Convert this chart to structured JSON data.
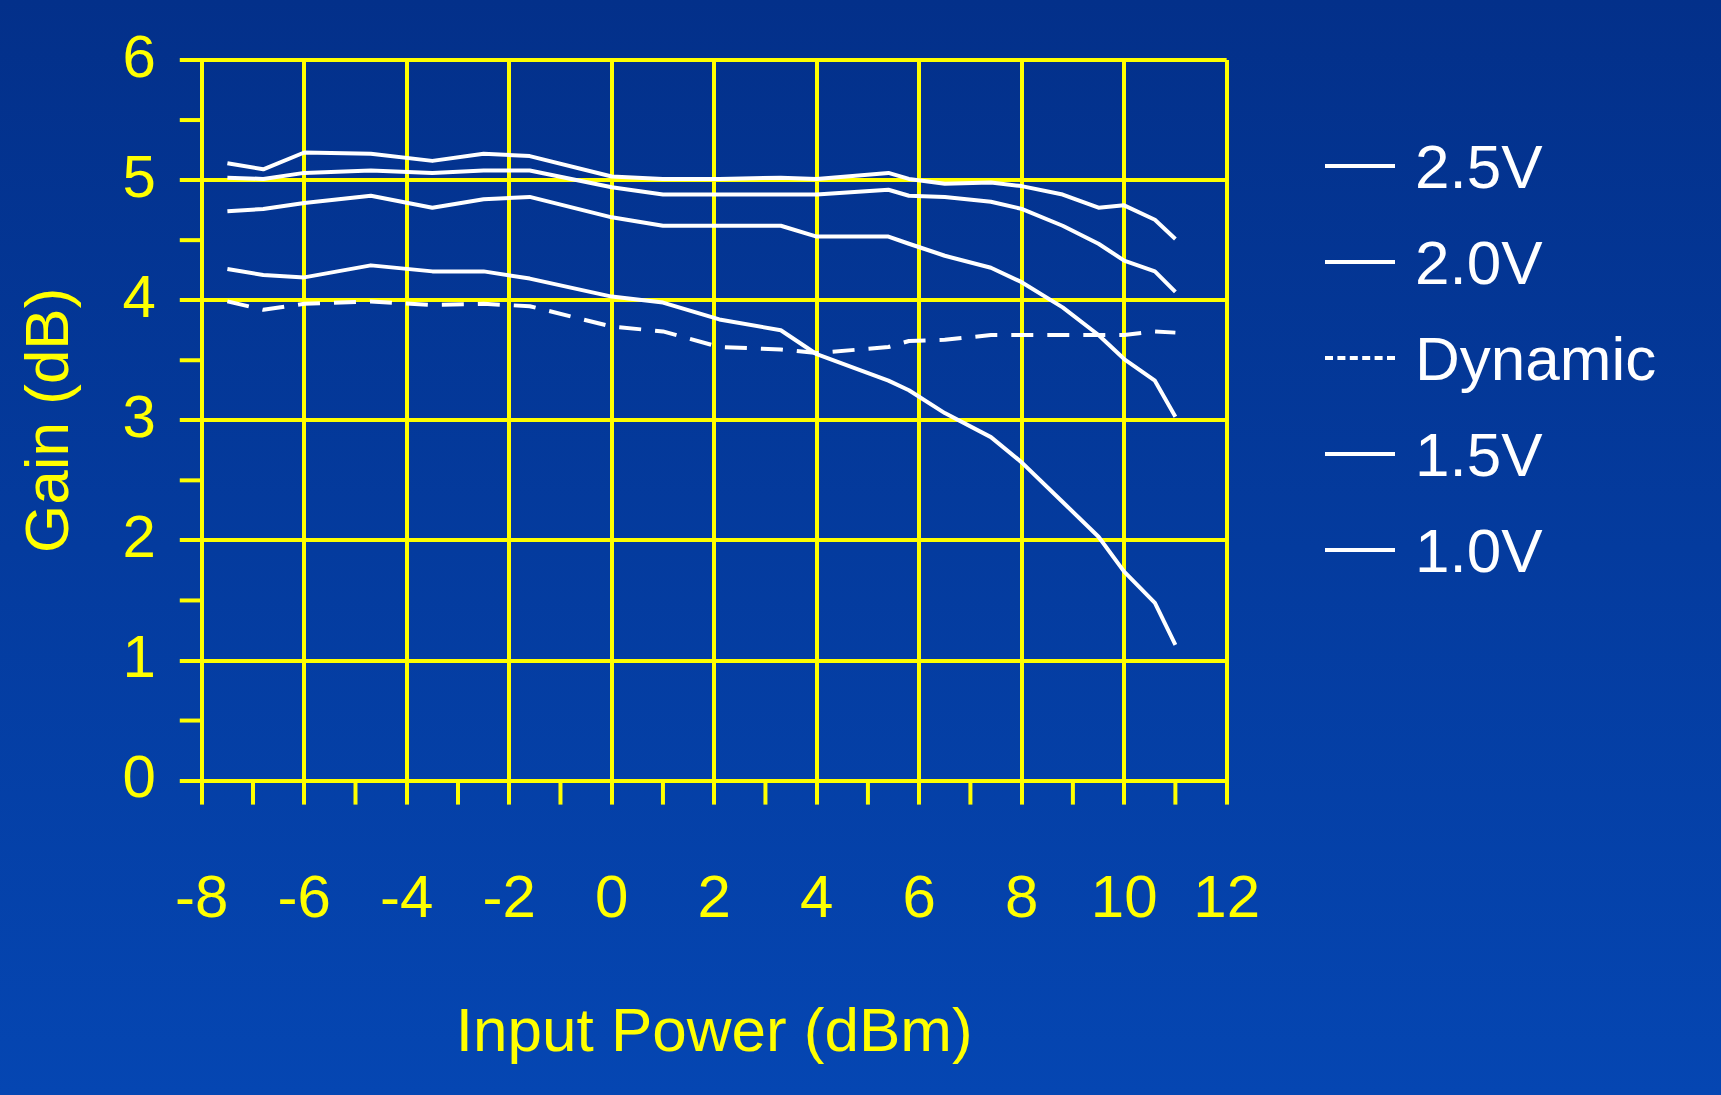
{
  "chart_data": {
    "type": "line",
    "xlabel": "Input Power (dBm)",
    "ylabel": "Gain (dB)",
    "x": [
      -7.5,
      -6.8,
      -6,
      -4.7,
      -3.5,
      -2.5,
      -1.6,
      0,
      1,
      2.1,
      3.3,
      4,
      5.4,
      5.8,
      6.5,
      7.4,
      8,
      8.8,
      9.5,
      10,
      10.6,
      11
    ],
    "series": [
      {
        "name": "2.5V",
        "color": "#ffffff",
        "line_style": "solid",
        "values": [
          5.14,
          5.09,
          5.23,
          5.22,
          5.16,
          5.22,
          5.2,
          5.03,
          5.01,
          5.01,
          5.02,
          5.01,
          5.06,
          5.01,
          4.97,
          4.98,
          4.95,
          4.88,
          4.77,
          4.79,
          4.67,
          4.51
        ]
      },
      {
        "name": "2.0V",
        "color": "#ffffff",
        "line_style": "solid",
        "values": [
          5.02,
          5.01,
          5.06,
          5.08,
          5.06,
          5.08,
          5.08,
          4.94,
          4.88,
          4.88,
          4.88,
          4.88,
          4.92,
          4.87,
          4.86,
          4.82,
          4.76,
          4.62,
          4.47,
          4.33,
          4.24,
          4.07
        ]
      },
      {
        "name": "Dynamic",
        "color": "#ffffff",
        "line_style": "dashed",
        "values": [
          3.99,
          3.92,
          3.97,
          3.99,
          3.96,
          3.97,
          3.95,
          3.78,
          3.74,
          3.61,
          3.59,
          3.56,
          3.61,
          3.66,
          3.67,
          3.71,
          3.71,
          3.71,
          3.71,
          3.71,
          3.74,
          3.73
        ]
      },
      {
        "name": "1.5V",
        "color": "#ffffff",
        "line_style": "solid",
        "values": [
          4.74,
          4.76,
          4.81,
          4.87,
          4.77,
          4.84,
          4.86,
          4.69,
          4.62,
          4.62,
          4.62,
          4.53,
          4.53,
          4.47,
          4.37,
          4.27,
          4.15,
          3.94,
          3.71,
          3.51,
          3.33,
          3.03
        ]
      },
      {
        "name": "1.0V",
        "color": "#ffffff",
        "line_style": "solid",
        "values": [
          4.26,
          4.21,
          4.19,
          4.29,
          4.24,
          4.24,
          4.18,
          4.03,
          3.98,
          3.84,
          3.75,
          3.55,
          3.33,
          3.25,
          3.06,
          2.86,
          2.65,
          2.32,
          2.03,
          1.74,
          1.48,
          1.13
        ]
      }
    ],
    "xlim": [
      -8,
      12
    ],
    "xticks": [
      -8,
      -6,
      -4,
      -2,
      0,
      2,
      4,
      6,
      8,
      10,
      12
    ],
    "ylim": [
      0,
      6
    ],
    "yticks": [
      0,
      1,
      2,
      3,
      4,
      5,
      6
    ],
    "grid": true,
    "legend": "right",
    "marker": "none"
  }
}
